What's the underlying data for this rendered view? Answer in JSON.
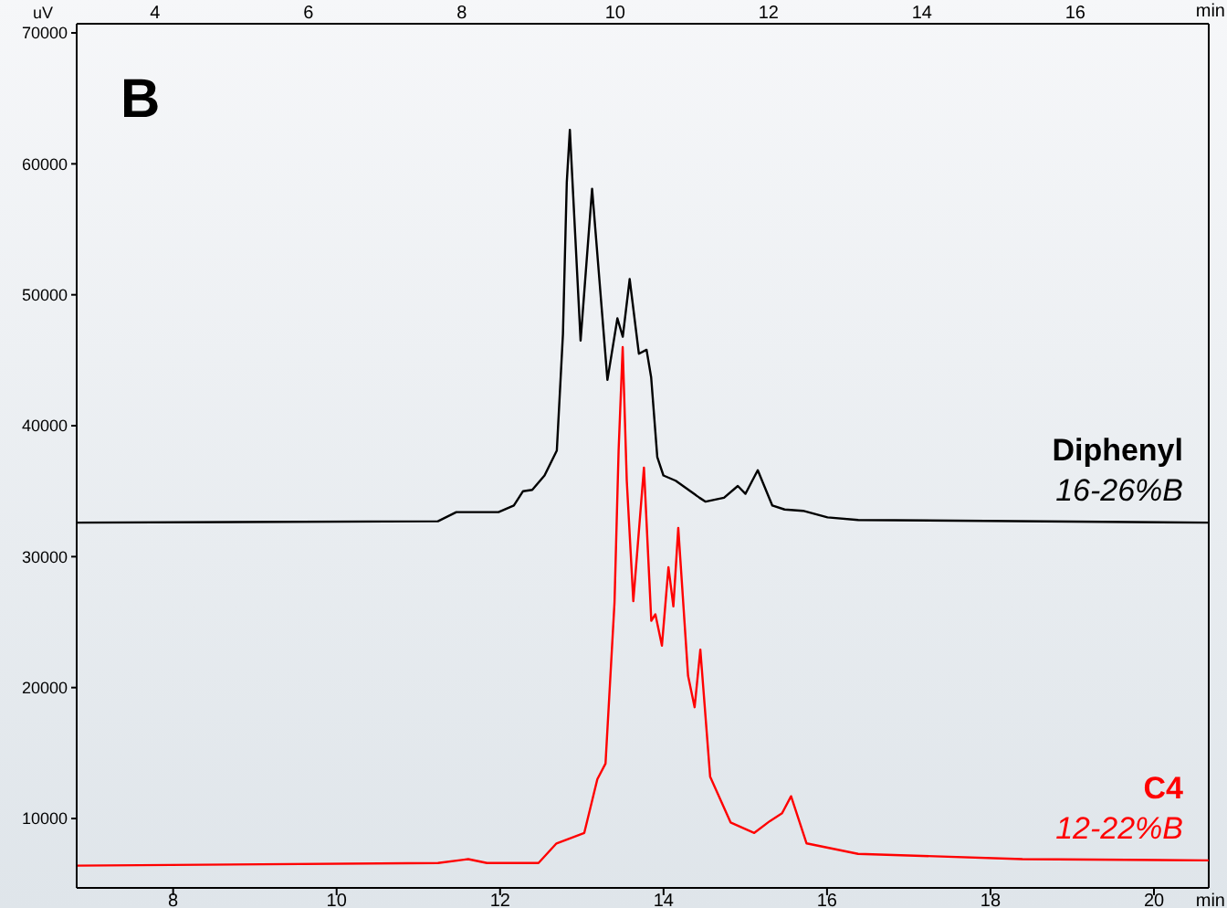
{
  "chart_data": {
    "type": "line",
    "title": "B",
    "xlabel": "min",
    "x2label": "min",
    "ylabel": "uV",
    "xlim": [
      6.82,
      20.67
    ],
    "xticks": [
      8,
      10,
      12,
      14,
      16,
      18,
      20
    ],
    "x2lim": [
      2.98,
      17.74
    ],
    "x2ticks": [
      4,
      6,
      8,
      10,
      12,
      14,
      16
    ],
    "ylim": [
      4700,
      70700
    ],
    "yticks": [
      10000,
      20000,
      30000,
      40000,
      50000,
      60000,
      70000
    ],
    "grid": false,
    "legend": false,
    "marker": "none",
    "line_style": "solid",
    "annotations": [
      "16-26%B",
      "12-22%B"
    ],
    "series": [
      {
        "name": "Diphenyl",
        "color": "#000000",
        "axis": "x2",
        "x": [
          2.98,
          7.69,
          7.93,
          8.48,
          8.68,
          8.8,
          8.92,
          9.08,
          9.24,
          9.32,
          9.37,
          9.41,
          9.55,
          9.7,
          9.9,
          10.03,
          10.1,
          10.19,
          10.31,
          10.41,
          10.47,
          10.55,
          10.63,
          10.79,
          11.1,
          11.18,
          11.42,
          11.6,
          11.7,
          11.86,
          12.05,
          12.21,
          12.45,
          12.77,
          13.17,
          17.74
        ],
        "values": [
          32600,
          32700,
          33400,
          33400,
          33900,
          35000,
          35100,
          36200,
          38100,
          47000,
          58600,
          62600,
          46500,
          58100,
          43500,
          48200,
          46800,
          51200,
          45500,
          45800,
          43700,
          37600,
          36200,
          35800,
          34500,
          34200,
          34500,
          35400,
          34800,
          36600,
          33900,
          33600,
          33500,
          33000,
          32800,
          32600
        ]
      },
      {
        "name": "C4",
        "color": "#ff0000",
        "x": [
          6.82,
          11.24,
          11.61,
          11.84,
          12.47,
          12.69,
          13.03,
          13.19,
          13.29,
          13.4,
          13.45,
          13.5,
          13.55,
          13.63,
          13.76,
          13.85,
          13.9,
          13.98,
          14.06,
          14.12,
          14.18,
          14.3,
          14.38,
          14.45,
          14.57,
          14.82,
          15.11,
          15.3,
          15.45,
          15.56,
          15.75,
          16.38,
          18.39,
          20.67
        ],
        "values": [
          6400,
          6600,
          6900,
          6600,
          6600,
          8100,
          8900,
          13000,
          14200,
          26500,
          38100,
          46000,
          35800,
          26600,
          36800,
          25100,
          25600,
          23200,
          29200,
          26200,
          32200,
          20900,
          18500,
          22900,
          13200,
          9700,
          8900,
          9800,
          10400,
          11700,
          8100,
          7300,
          6900,
          6800
        ]
      }
    ]
  }
}
